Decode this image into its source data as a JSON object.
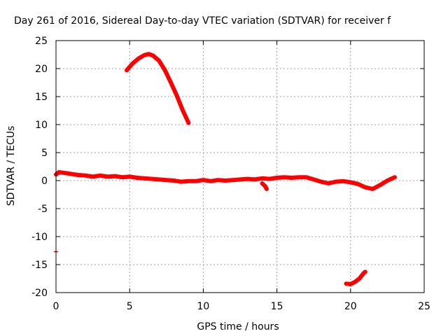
{
  "chart_data": {
    "type": "scatter",
    "title": "Day 261 of 2016, Sidereal Day-to-day VTEC variation (SDTVAR) for receiver f",
    "xlabel": "GPS time / hours",
    "ylabel": "SDTVAR / TECUs",
    "xlim": [
      0,
      25
    ],
    "ylim": [
      -20,
      25
    ],
    "x_ticks": [
      "0",
      "5",
      "10",
      "15",
      "20",
      "25"
    ],
    "y_ticks": [
      "25",
      "20",
      "15",
      "10",
      "5",
      "0",
      "-5",
      "-10",
      "-15",
      "-20"
    ],
    "x_tick_values": [
      0,
      5,
      10,
      15,
      20,
      25
    ],
    "y_tick_values": [
      25,
      20,
      15,
      10,
      5,
      0,
      -5,
      -10,
      -15,
      -20
    ],
    "grid": true,
    "legend": "none",
    "color": "#ff0000",
    "series": [
      {
        "values": [
          [
            0.0,
            1.1
          ],
          [
            0.2,
            1.5
          ],
          [
            0.5,
            1.4
          ],
          [
            1.0,
            1.2
          ],
          [
            1.5,
            1.0
          ],
          [
            2.0,
            0.9
          ],
          [
            2.5,
            0.7
          ],
          [
            3.0,
            0.9
          ],
          [
            3.5,
            0.7
          ],
          [
            4.0,
            0.8
          ],
          [
            4.5,
            0.6
          ],
          [
            5.0,
            0.7
          ],
          [
            5.5,
            0.5
          ],
          [
            6.0,
            0.4
          ],
          [
            6.5,
            0.3
          ],
          [
            7.0,
            0.2
          ],
          [
            7.5,
            0.1
          ],
          [
            8.0,
            0.0
          ],
          [
            8.5,
            -0.2
          ],
          [
            9.0,
            -0.1
          ],
          [
            9.5,
            -0.1
          ],
          [
            10.0,
            0.1
          ],
          [
            10.5,
            -0.1
          ],
          [
            11.0,
            0.1
          ],
          [
            11.5,
            0.0
          ],
          [
            12.0,
            0.1
          ],
          [
            12.5,
            0.2
          ],
          [
            13.0,
            0.3
          ],
          [
            13.5,
            0.2
          ],
          [
            14.0,
            0.4
          ],
          [
            14.5,
            0.3
          ],
          [
            15.0,
            0.5
          ],
          [
            15.5,
            0.6
          ],
          [
            16.0,
            0.5
          ],
          [
            16.5,
            0.6
          ],
          [
            17.0,
            0.6
          ],
          [
            17.5,
            0.2
          ],
          [
            18.0,
            -0.2
          ],
          [
            18.5,
            -0.5
          ],
          [
            19.0,
            -0.2
          ],
          [
            19.5,
            -0.1
          ],
          [
            20.0,
            -0.3
          ],
          [
            20.5,
            -0.6
          ],
          [
            21.0,
            -1.2
          ],
          [
            21.5,
            -1.5
          ],
          [
            22.0,
            -0.8
          ],
          [
            22.5,
            0.0
          ],
          [
            23.0,
            0.6
          ]
        ]
      },
      {
        "values": [
          [
            4.8,
            19.7
          ],
          [
            5.2,
            20.9
          ],
          [
            5.6,
            21.8
          ],
          [
            6.0,
            22.4
          ],
          [
            6.3,
            22.6
          ],
          [
            6.6,
            22.3
          ],
          [
            7.0,
            21.4
          ],
          [
            7.4,
            19.7
          ],
          [
            7.8,
            17.5
          ],
          [
            8.2,
            15.2
          ],
          [
            8.6,
            12.6
          ],
          [
            9.0,
            10.3
          ]
        ]
      },
      {
        "values": [
          [
            19.7,
            -18.4
          ],
          [
            20.0,
            -18.5
          ],
          [
            20.3,
            -18.1
          ],
          [
            20.6,
            -17.5
          ],
          [
            20.9,
            -16.5
          ],
          [
            21.0,
            -16.3
          ]
        ]
      },
      {
        "values": [
          [
            14.0,
            -0.5
          ],
          [
            14.2,
            -1.0
          ],
          [
            14.3,
            -1.5
          ]
        ]
      },
      {
        "values": [
          [
            0.0,
            -12.7
          ]
        ]
      }
    ]
  }
}
